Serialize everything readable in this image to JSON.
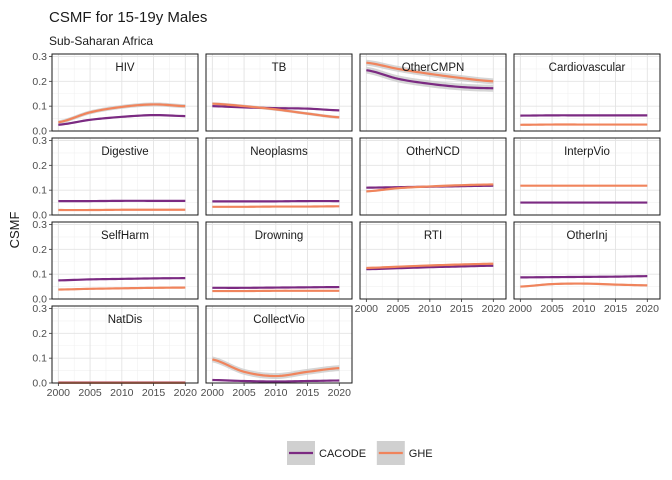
{
  "title": "CSMF for 15-19y Males",
  "subtitle": "Sub-Saharan Africa",
  "colors": {
    "CACODE": "#7b2a82",
    "GHE": "#f0845c",
    "ribbon": "#c8c8c8"
  },
  "chart_data": {
    "type": "line",
    "title": "CSMF for 15-19y Males",
    "subtitle": "Sub-Saharan Africa",
    "xlabel": "",
    "ylabel": "CSMF",
    "xlim": [
      1999,
      2022
    ],
    "ylim": [
      0,
      0.31
    ],
    "x_ticks": [
      2000,
      2005,
      2010,
      2015,
      2020
    ],
    "y_ticks": [
      0.0,
      0.1,
      0.2,
      0.3
    ],
    "x_tick_labels": [
      "2000",
      "2005",
      "2010",
      "2015",
      "2020"
    ],
    "y_tick_labels": [
      "0.0",
      "0.1",
      "0.2",
      "0.3"
    ],
    "grid": true,
    "legend_position": "bottom",
    "legend": [
      "CACODE",
      "GHE"
    ],
    "x": [
      2000,
      2005,
      2010,
      2015,
      2020
    ],
    "panels": [
      {
        "name": "HIV",
        "series": [
          {
            "name": "CACODE",
            "values": [
              0.025,
              0.045,
              0.057,
              0.064,
              0.06
            ],
            "band": 0.004
          },
          {
            "name": "GHE",
            "values": [
              0.035,
              0.075,
              0.097,
              0.107,
              0.1
            ],
            "band": 0.008
          }
        ]
      },
      {
        "name": "TB",
        "series": [
          {
            "name": "CACODE",
            "values": [
              0.1,
              0.095,
              0.092,
              0.09,
              0.083
            ],
            "band": 0.003
          },
          {
            "name": "GHE",
            "values": [
              0.11,
              0.1,
              0.087,
              0.07,
              0.055
            ],
            "band": 0.006
          }
        ]
      },
      {
        "name": "OtherCMPN",
        "series": [
          {
            "name": "CACODE",
            "values": [
              0.245,
              0.21,
              0.19,
              0.177,
              0.172
            ],
            "band": 0.014
          },
          {
            "name": "GHE",
            "values": [
              0.275,
              0.25,
              0.23,
              0.213,
              0.2
            ],
            "band": 0.012
          }
        ]
      },
      {
        "name": "Cardiovascular",
        "series": [
          {
            "name": "CACODE",
            "values": [
              0.062,
              0.063,
              0.063,
              0.063,
              0.063
            ],
            "band": 0.002
          },
          {
            "name": "GHE",
            "values": [
              0.025,
              0.026,
              0.026,
              0.026,
              0.026
            ],
            "band": 0.002
          }
        ]
      },
      {
        "name": "Digestive",
        "series": [
          {
            "name": "CACODE",
            "values": [
              0.056,
              0.056,
              0.057,
              0.057,
              0.057
            ],
            "band": 0.002
          },
          {
            "name": "GHE",
            "values": [
              0.02,
              0.02,
              0.021,
              0.021,
              0.021
            ],
            "band": 0.002
          }
        ]
      },
      {
        "name": "Neoplasms",
        "series": [
          {
            "name": "CACODE",
            "values": [
              0.055,
              0.055,
              0.055,
              0.056,
              0.056
            ],
            "band": 0.002
          },
          {
            "name": "GHE",
            "values": [
              0.033,
              0.033,
              0.034,
              0.034,
              0.035
            ],
            "band": 0.002
          }
        ]
      },
      {
        "name": "OtherNCD",
        "series": [
          {
            "name": "CACODE",
            "values": [
              0.11,
              0.112,
              0.114,
              0.116,
              0.118
            ],
            "band": 0.002
          },
          {
            "name": "GHE",
            "values": [
              0.095,
              0.108,
              0.115,
              0.12,
              0.123
            ],
            "band": 0.004
          }
        ]
      },
      {
        "name": "InterpVio",
        "series": [
          {
            "name": "CACODE",
            "values": [
              0.05,
              0.05,
              0.05,
              0.05,
              0.05
            ],
            "band": 0.002
          },
          {
            "name": "GHE",
            "values": [
              0.118,
              0.118,
              0.118,
              0.118,
              0.118
            ],
            "band": 0.002
          }
        ]
      },
      {
        "name": "SelfHarm",
        "series": [
          {
            "name": "CACODE",
            "values": [
              0.075,
              0.079,
              0.081,
              0.083,
              0.084
            ],
            "band": 0.002
          },
          {
            "name": "GHE",
            "values": [
              0.038,
              0.041,
              0.043,
              0.045,
              0.046
            ],
            "band": 0.002
          }
        ]
      },
      {
        "name": "Drowning",
        "series": [
          {
            "name": "CACODE",
            "values": [
              0.045,
              0.045,
              0.046,
              0.047,
              0.048
            ],
            "band": 0.002
          },
          {
            "name": "GHE",
            "values": [
              0.032,
              0.032,
              0.033,
              0.033,
              0.033
            ],
            "band": 0.002
          }
        ]
      },
      {
        "name": "RTI",
        "series": [
          {
            "name": "CACODE",
            "values": [
              0.12,
              0.124,
              0.128,
              0.131,
              0.134
            ],
            "band": 0.003
          },
          {
            "name": "GHE",
            "values": [
              0.125,
              0.13,
              0.135,
              0.139,
              0.142
            ],
            "band": 0.004
          }
        ]
      },
      {
        "name": "OtherInj",
        "series": [
          {
            "name": "CACODE",
            "values": [
              0.087,
              0.088,
              0.089,
              0.09,
              0.092
            ],
            "band": 0.002
          },
          {
            "name": "GHE",
            "values": [
              0.05,
              0.06,
              0.062,
              0.058,
              0.055
            ],
            "band": 0.004
          }
        ]
      },
      {
        "name": "NatDis",
        "series": [
          {
            "name": "CACODE",
            "values": [
              0.002,
              0.002,
              0.002,
              0.002,
              0.002
            ],
            "band": 0.001
          },
          {
            "name": "GHE",
            "values": [
              0.001,
              0.001,
              0.001,
              0.001,
              0.001
            ],
            "band": 0.001
          }
        ]
      },
      {
        "name": "CollectVio",
        "series": [
          {
            "name": "CACODE",
            "values": [
              0.012,
              0.008,
              0.006,
              0.008,
              0.01
            ],
            "band": 0.003
          },
          {
            "name": "GHE",
            "values": [
              0.095,
              0.045,
              0.028,
              0.045,
              0.06
            ],
            "band": 0.012
          }
        ]
      }
    ]
  }
}
